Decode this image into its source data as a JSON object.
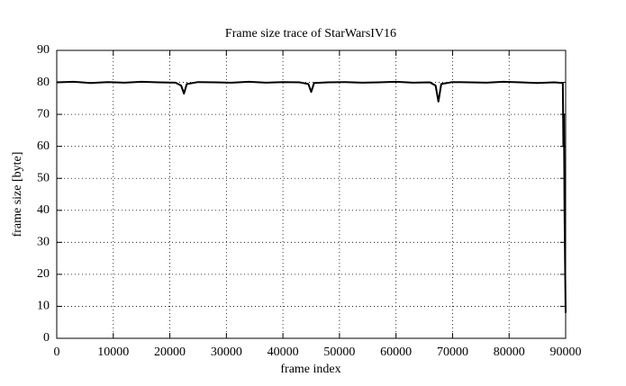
{
  "chart_data": {
    "type": "line",
    "title": "Frame size trace of StarWarsIV16",
    "x_label": "frame index",
    "y_label": "frame size [byte]",
    "x": [
      0,
      3000,
      6000,
      9000,
      12000,
      15000,
      18000,
      21000,
      22000,
      22500,
      23000,
      25000,
      28000,
      31000,
      34000,
      37000,
      40000,
      43000,
      44500,
      45000,
      45500,
      48000,
      51000,
      54000,
      57000,
      60000,
      63000,
      66000,
      67000,
      67500,
      68000,
      70000,
      73000,
      76000,
      79000,
      82000,
      85000,
      88000,
      89500,
      89600,
      89700,
      89800,
      89900,
      90000
    ],
    "series": [
      {
        "name": "StarWarsIV16",
        "color": "#000000",
        "values": [
          80,
          80.2,
          79.8,
          80.1,
          79.9,
          80.2,
          80,
          79.9,
          79,
          76.5,
          79.5,
          80.1,
          80,
          79.9,
          80.2,
          79.9,
          80.1,
          80,
          79.5,
          77,
          79.8,
          80,
          80.1,
          79.9,
          80,
          80.2,
          79.9,
          80,
          79,
          74,
          79.5,
          80.1,
          80,
          79.9,
          80.2,
          80,
          79.8,
          80,
          79.8,
          60,
          70,
          40,
          23,
          8
        ]
      }
    ],
    "xlim": [
      0,
      90000
    ],
    "ylim": [
      0,
      90
    ],
    "xticks": [
      0,
      10000,
      20000,
      30000,
      40000,
      50000,
      60000,
      70000,
      80000,
      90000
    ],
    "yticks": [
      0,
      10,
      20,
      30,
      40,
      50,
      60,
      70,
      80,
      90
    ],
    "grid": true
  }
}
